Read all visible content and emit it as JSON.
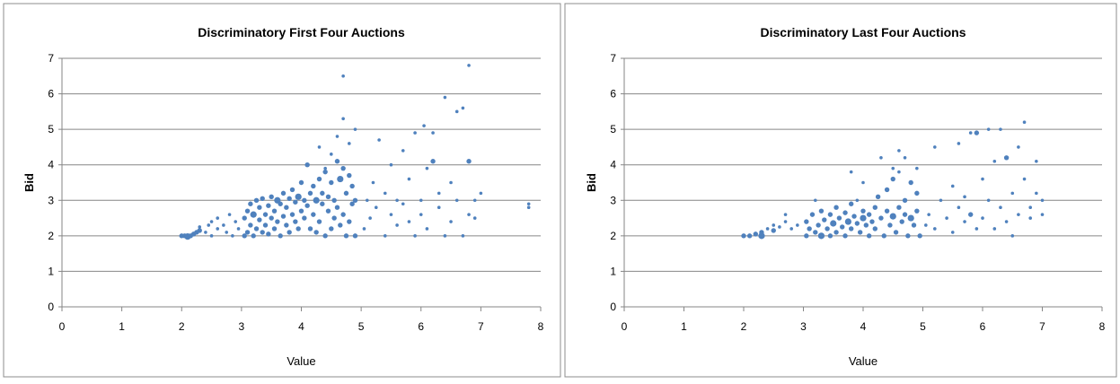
{
  "chart_data": [
    {
      "type": "scatter",
      "title": "Discriminatory First Four Auctions",
      "xlabel": "Value",
      "ylabel": "Bid",
      "xlim": [
        0,
        8
      ],
      "ylim": [
        0,
        7
      ],
      "xticks": [
        "0",
        "1",
        "2",
        "3",
        "4",
        "5",
        "6",
        "7",
        "8"
      ],
      "yticks": [
        "0",
        "1",
        "2",
        "3",
        "4",
        "5",
        "6",
        "7"
      ],
      "grid": "horizontal",
      "legend": "none",
      "color": "#4f81bd",
      "points": [
        [
          2.0,
          2.0,
          3
        ],
        [
          2.05,
          2.0,
          3
        ],
        [
          2.1,
          1.98,
          4
        ],
        [
          2.15,
          2.0,
          3
        ],
        [
          2.2,
          2.05,
          3
        ],
        [
          2.25,
          2.1,
          3
        ],
        [
          2.3,
          2.15,
          3
        ],
        [
          2.3,
          2.25,
          2
        ],
        [
          2.4,
          2.1,
          2
        ],
        [
          2.45,
          2.3,
          2
        ],
        [
          2.5,
          2.0,
          2
        ],
        [
          2.5,
          2.4,
          2
        ],
        [
          2.6,
          2.2,
          2
        ],
        [
          2.6,
          2.5,
          2
        ],
        [
          2.7,
          2.3,
          2
        ],
        [
          2.75,
          2.1,
          2
        ],
        [
          2.8,
          2.6,
          2
        ],
        [
          2.85,
          2.0,
          2
        ],
        [
          2.9,
          2.4,
          2
        ],
        [
          2.95,
          2.2,
          2
        ],
        [
          3.05,
          2.0,
          3
        ],
        [
          3.05,
          2.5,
          3
        ],
        [
          3.1,
          2.1,
          3
        ],
        [
          3.1,
          2.7,
          3
        ],
        [
          3.15,
          2.3,
          3
        ],
        [
          3.15,
          2.9,
          3
        ],
        [
          3.2,
          2.0,
          3
        ],
        [
          3.2,
          2.6,
          4
        ],
        [
          3.25,
          2.2,
          3
        ],
        [
          3.25,
          3.0,
          3
        ],
        [
          3.3,
          2.45,
          3
        ],
        [
          3.3,
          2.8,
          3
        ],
        [
          3.35,
          2.1,
          3
        ],
        [
          3.35,
          3.05,
          3
        ],
        [
          3.4,
          2.3,
          3
        ],
        [
          3.4,
          2.6,
          3
        ],
        [
          3.45,
          2.05,
          3
        ],
        [
          3.45,
          2.85,
          3
        ],
        [
          3.5,
          2.5,
          3
        ],
        [
          3.5,
          3.1,
          3
        ],
        [
          3.55,
          2.2,
          3
        ],
        [
          3.55,
          2.7,
          3
        ],
        [
          3.6,
          2.4,
          3
        ],
        [
          3.6,
          3.0,
          4
        ],
        [
          3.65,
          2.0,
          3
        ],
        [
          3.65,
          2.9,
          3
        ],
        [
          3.7,
          2.55,
          3
        ],
        [
          3.7,
          3.2,
          3
        ],
        [
          3.75,
          2.3,
          3
        ],
        [
          3.75,
          2.8,
          3
        ],
        [
          3.8,
          2.1,
          3
        ],
        [
          3.8,
          3.05,
          3
        ],
        [
          3.85,
          2.6,
          3
        ],
        [
          3.85,
          3.3,
          3
        ],
        [
          3.9,
          2.4,
          3
        ],
        [
          3.9,
          2.95,
          3
        ],
        [
          3.95,
          2.2,
          3
        ],
        [
          3.95,
          3.1,
          4
        ],
        [
          4.0,
          2.7,
          3
        ],
        [
          4.0,
          3.5,
          3
        ],
        [
          4.05,
          2.5,
          3
        ],
        [
          4.05,
          3.0,
          3
        ],
        [
          4.1,
          2.85,
          3
        ],
        [
          4.1,
          4.0,
          3
        ],
        [
          4.15,
          2.2,
          3
        ],
        [
          4.15,
          3.2,
          3
        ],
        [
          4.2,
          2.6,
          3
        ],
        [
          4.2,
          3.4,
          3
        ],
        [
          4.25,
          2.1,
          3
        ],
        [
          4.25,
          3.0,
          4
        ],
        [
          4.3,
          2.4,
          3
        ],
        [
          4.3,
          3.6,
          3
        ],
        [
          4.35,
          2.9,
          3
        ],
        [
          4.35,
          3.2,
          3
        ],
        [
          4.4,
          2.0,
          3
        ],
        [
          4.4,
          3.8,
          3
        ],
        [
          4.45,
          2.7,
          3
        ],
        [
          4.45,
          3.1,
          3
        ],
        [
          4.5,
          2.2,
          3
        ],
        [
          4.5,
          3.5,
          3
        ],
        [
          4.55,
          2.5,
          3
        ],
        [
          4.55,
          3.0,
          3
        ],
        [
          4.6,
          2.8,
          3
        ],
        [
          4.6,
          4.1,
          3
        ],
        [
          4.65,
          2.3,
          3
        ],
        [
          4.65,
          3.6,
          4
        ],
        [
          4.7,
          2.6,
          3
        ],
        [
          4.7,
          3.9,
          3
        ],
        [
          4.75,
          2.0,
          3
        ],
        [
          4.75,
          3.2,
          3
        ],
        [
          4.8,
          2.4,
          3
        ],
        [
          4.8,
          3.7,
          3
        ],
        [
          4.85,
          2.9,
          3
        ],
        [
          4.85,
          3.4,
          3
        ],
        [
          4.9,
          2.0,
          3
        ],
        [
          4.9,
          3.0,
          3
        ],
        [
          4.3,
          4.5,
          2
        ],
        [
          4.5,
          4.3,
          2
        ],
        [
          4.6,
          4.8,
          2
        ],
        [
          4.7,
          5.3,
          2
        ],
        [
          4.7,
          6.5,
          2
        ],
        [
          4.9,
          5.0,
          2
        ],
        [
          4.8,
          4.6,
          2
        ],
        [
          4.4,
          3.9,
          2
        ],
        [
          5.05,
          2.2,
          2
        ],
        [
          5.1,
          3.0,
          2
        ],
        [
          5.15,
          2.5,
          2
        ],
        [
          5.2,
          3.5,
          2
        ],
        [
          5.25,
          2.8,
          2
        ],
        [
          5.3,
          4.7,
          2
        ],
        [
          5.4,
          2.0,
          2
        ],
        [
          5.4,
          3.2,
          2
        ],
        [
          5.5,
          2.6,
          2
        ],
        [
          5.5,
          4.0,
          2
        ],
        [
          5.6,
          2.3,
          2
        ],
        [
          5.6,
          3.0,
          2
        ],
        [
          5.7,
          2.9,
          2
        ],
        [
          5.7,
          4.4,
          2
        ],
        [
          5.8,
          2.4,
          2
        ],
        [
          5.8,
          3.6,
          2
        ],
        [
          5.9,
          2.0,
          2
        ],
        [
          5.9,
          4.9,
          2
        ],
        [
          6.0,
          3.0,
          2
        ],
        [
          6.0,
          2.6,
          2
        ],
        [
          6.05,
          5.1,
          2
        ],
        [
          6.1,
          3.9,
          2
        ],
        [
          6.1,
          2.2,
          2
        ],
        [
          6.2,
          4.1,
          3
        ],
        [
          6.2,
          4.9,
          2
        ],
        [
          6.3,
          2.8,
          2
        ],
        [
          6.3,
          3.2,
          2
        ],
        [
          6.4,
          2.0,
          2
        ],
        [
          6.4,
          5.9,
          2
        ],
        [
          6.5,
          3.5,
          2
        ],
        [
          6.5,
          2.4,
          2
        ],
        [
          6.6,
          5.5,
          2
        ],
        [
          6.6,
          3.0,
          2
        ],
        [
          6.7,
          2.0,
          2
        ],
        [
          6.7,
          5.6,
          2
        ],
        [
          6.8,
          4.1,
          3
        ],
        [
          6.8,
          6.8,
          2
        ],
        [
          6.8,
          2.6,
          2
        ],
        [
          6.9,
          3.0,
          2
        ],
        [
          6.9,
          2.5,
          2
        ],
        [
          7.0,
          3.2,
          2
        ],
        [
          7.8,
          2.8,
          2
        ],
        [
          7.8,
          2.9,
          2
        ]
      ]
    },
    {
      "type": "scatter",
      "title": "Discriminatory Last Four Auctions",
      "xlabel": "Value",
      "ylabel": "Bid",
      "xlim": [
        0,
        8
      ],
      "ylim": [
        0,
        7
      ],
      "xticks": [
        "0",
        "1",
        "2",
        "3",
        "4",
        "5",
        "6",
        "7",
        "8"
      ],
      "yticks": [
        "0",
        "1",
        "2",
        "3",
        "4",
        "5",
        "6",
        "7"
      ],
      "grid": "horizontal",
      "legend": "none",
      "color": "#4f81bd",
      "points": [
        [
          2.0,
          2.0,
          3
        ],
        [
          2.1,
          2.0,
          3
        ],
        [
          2.2,
          2.05,
          3
        ],
        [
          2.3,
          2.1,
          3
        ],
        [
          2.3,
          2.0,
          4
        ],
        [
          2.4,
          2.2,
          2
        ],
        [
          2.5,
          2.15,
          3
        ],
        [
          2.5,
          2.3,
          2
        ],
        [
          2.6,
          2.25,
          2
        ],
        [
          2.7,
          2.4,
          2
        ],
        [
          2.7,
          2.6,
          2
        ],
        [
          2.8,
          2.2,
          2
        ],
        [
          2.9,
          2.3,
          2
        ],
        [
          3.05,
          2.0,
          3
        ],
        [
          3.05,
          2.4,
          3
        ],
        [
          3.1,
          2.2,
          3
        ],
        [
          3.15,
          2.6,
          3
        ],
        [
          3.2,
          2.1,
          3
        ],
        [
          3.2,
          3.0,
          2
        ],
        [
          3.25,
          2.3,
          3
        ],
        [
          3.3,
          2.0,
          4
        ],
        [
          3.3,
          2.7,
          3
        ],
        [
          3.35,
          2.45,
          3
        ],
        [
          3.4,
          2.2,
          3
        ],
        [
          3.45,
          2.6,
          3
        ],
        [
          3.45,
          2.0,
          3
        ],
        [
          3.5,
          2.35,
          4
        ],
        [
          3.55,
          2.8,
          3
        ],
        [
          3.55,
          2.1,
          3
        ],
        [
          3.6,
          2.5,
          3
        ],
        [
          3.65,
          2.25,
          3
        ],
        [
          3.7,
          2.65,
          3
        ],
        [
          3.7,
          2.0,
          3
        ],
        [
          3.75,
          2.4,
          4
        ],
        [
          3.8,
          2.9,
          3
        ],
        [
          3.8,
          2.2,
          3
        ],
        [
          3.85,
          2.55,
          3
        ],
        [
          3.9,
          2.35,
          3
        ],
        [
          3.9,
          3.0,
          2
        ],
        [
          3.95,
          2.1,
          3
        ],
        [
          4.0,
          2.5,
          4
        ],
        [
          4.0,
          2.7,
          3
        ],
        [
          4.05,
          2.3,
          3
        ],
        [
          4.1,
          2.0,
          3
        ],
        [
          4.1,
          2.6,
          3
        ],
        [
          4.15,
          2.4,
          3
        ],
        [
          4.2,
          2.8,
          3
        ],
        [
          4.2,
          2.2,
          3
        ],
        [
          4.25,
          3.1,
          3
        ],
        [
          4.3,
          2.5,
          3
        ],
        [
          4.3,
          4.2,
          2
        ],
        [
          4.35,
          2.0,
          3
        ],
        [
          4.4,
          2.7,
          3
        ],
        [
          4.4,
          3.3,
          3
        ],
        [
          4.45,
          2.3,
          3
        ],
        [
          4.5,
          2.55,
          4
        ],
        [
          4.5,
          3.6,
          3
        ],
        [
          4.55,
          2.1,
          3
        ],
        [
          4.6,
          2.8,
          3
        ],
        [
          4.6,
          3.8,
          2
        ],
        [
          4.65,
          2.4,
          3
        ],
        [
          4.7,
          2.6,
          3
        ],
        [
          4.7,
          3.0,
          3
        ],
        [
          4.75,
          2.0,
          3
        ],
        [
          4.8,
          2.5,
          4
        ],
        [
          4.8,
          3.5,
          3
        ],
        [
          4.85,
          2.3,
          3
        ],
        [
          4.9,
          2.7,
          3
        ],
        [
          4.9,
          3.2,
          3
        ],
        [
          4.95,
          2.0,
          3
        ],
        [
          3.8,
          3.8,
          2
        ],
        [
          4.0,
          3.5,
          2
        ],
        [
          4.5,
          3.9,
          2
        ],
        [
          4.6,
          4.4,
          2
        ],
        [
          4.7,
          4.2,
          2
        ],
        [
          4.9,
          3.9,
          2
        ],
        [
          5.05,
          2.3,
          2
        ],
        [
          5.1,
          2.6,
          2
        ],
        [
          5.2,
          4.5,
          2
        ],
        [
          5.2,
          2.2,
          2
        ],
        [
          5.3,
          3.0,
          2
        ],
        [
          5.4,
          2.5,
          2
        ],
        [
          5.5,
          3.4,
          2
        ],
        [
          5.5,
          2.1,
          2
        ],
        [
          5.6,
          2.8,
          2
        ],
        [
          5.6,
          4.6,
          2
        ],
        [
          5.7,
          2.4,
          2
        ],
        [
          5.7,
          3.1,
          2
        ],
        [
          5.8,
          2.6,
          3
        ],
        [
          5.8,
          4.9,
          2
        ],
        [
          5.9,
          2.2,
          2
        ],
        [
          5.9,
          4.9,
          3
        ],
        [
          6.0,
          3.6,
          2
        ],
        [
          6.0,
          2.5,
          2
        ],
        [
          6.1,
          5.0,
          2
        ],
        [
          6.1,
          3.0,
          2
        ],
        [
          6.2,
          2.2,
          2
        ],
        [
          6.2,
          4.1,
          2
        ],
        [
          6.3,
          2.8,
          2
        ],
        [
          6.3,
          5.0,
          2
        ],
        [
          6.4,
          4.2,
          3
        ],
        [
          6.4,
          2.4,
          2
        ],
        [
          6.5,
          3.2,
          2
        ],
        [
          6.5,
          2.0,
          2
        ],
        [
          6.6,
          4.5,
          2
        ],
        [
          6.6,
          2.6,
          2
        ],
        [
          6.7,
          3.6,
          2
        ],
        [
          6.7,
          5.2,
          2
        ],
        [
          6.8,
          2.5,
          2
        ],
        [
          6.8,
          2.8,
          2
        ],
        [
          6.9,
          3.2,
          2
        ],
        [
          6.9,
          4.1,
          2
        ],
        [
          7.0,
          3.0,
          2
        ],
        [
          7.0,
          2.6,
          2
        ]
      ]
    }
  ]
}
